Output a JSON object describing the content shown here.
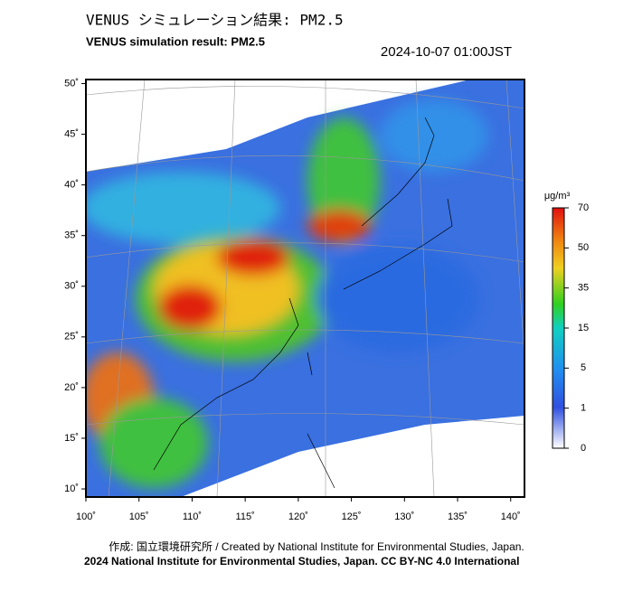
{
  "title": "VENUS シミュレーション結果: PM2.5",
  "subtitle": "VENUS simulation result: PM2.5",
  "timestamp": "2024-10-07 01:00JST",
  "map": {
    "xlim": [
      100,
      141.3
    ],
    "ylim": [
      9.2,
      50.4
    ],
    "xticks": [
      {
        "value": 100,
        "label": "100˚"
      },
      {
        "value": 105,
        "label": "105˚"
      },
      {
        "value": 110,
        "label": "110˚"
      },
      {
        "value": 115,
        "label": "115˚"
      },
      {
        "value": 120,
        "label": "120˚"
      },
      {
        "value": 125,
        "label": "125˚"
      },
      {
        "value": 130,
        "label": "130˚"
      },
      {
        "value": 135,
        "label": "135˚"
      },
      {
        "value": 140,
        "label": "140˚"
      }
    ],
    "yticks": [
      {
        "value": 10,
        "label": "10˚"
      },
      {
        "value": 15,
        "label": "15˚"
      },
      {
        "value": 20,
        "label": "20˚"
      },
      {
        "value": 25,
        "label": "25˚"
      },
      {
        "value": 30,
        "label": "30˚"
      },
      {
        "value": 35,
        "label": "35˚"
      },
      {
        "value": 40,
        "label": "40˚"
      },
      {
        "value": 45,
        "label": "45˚"
      },
      {
        "value": 50,
        "label": "50˚"
      }
    ]
  },
  "colorbar": {
    "unit": "μg/m³",
    "ticks": [
      0,
      1,
      5,
      15,
      35,
      50,
      70
    ]
  },
  "footer": {
    "credit": "作成: 国立環境研究所 / Created by National Institute for Environmental Studies, Japan.",
    "copyright": "2024 National Institute for Environmental Studies, Japan. CC BY-NC 4.0 International"
  }
}
